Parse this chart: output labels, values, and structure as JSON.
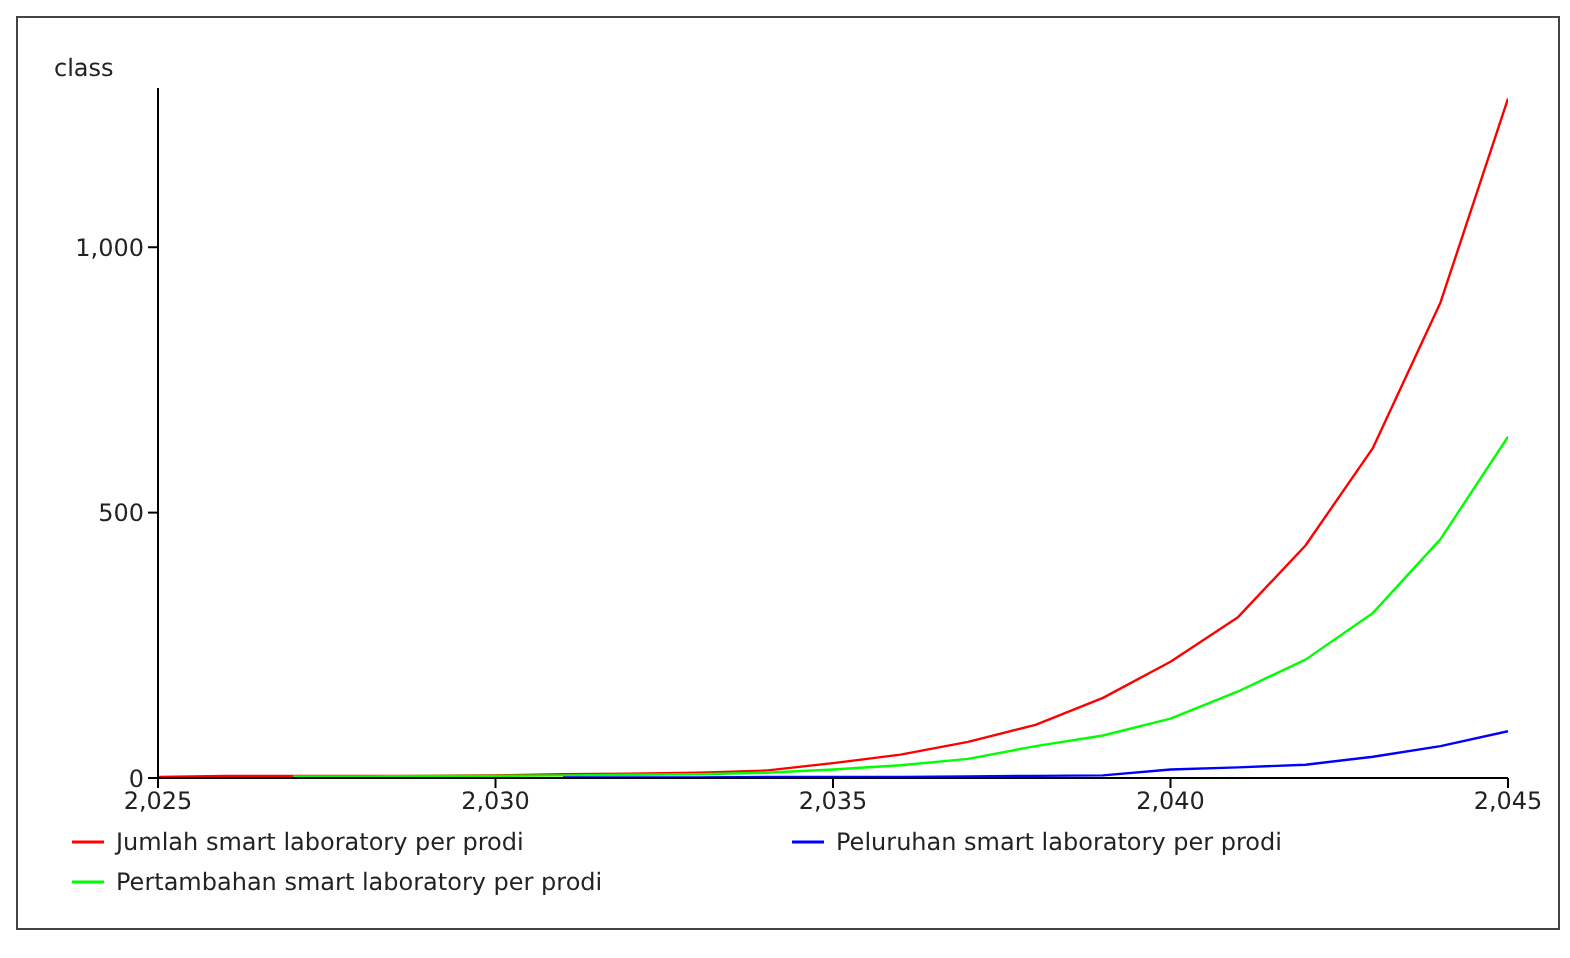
{
  "chart_data": {
    "type": "line",
    "ylabel": "class",
    "x": [
      2025,
      2026,
      2027,
      2028,
      2029,
      2030,
      2031,
      2032,
      2033,
      2034,
      2035,
      2036,
      2037,
      2038,
      2039,
      2040,
      2041,
      2042,
      2043,
      2044,
      2045
    ],
    "series": [
      {
        "name": "Jumlah smart laboratory per prodi",
        "color": "#ff0000",
        "values": [
          2,
          4,
          4,
          4,
          4,
          5,
          7,
          8,
          10,
          14,
          28,
          44,
          68,
          100,
          151,
          219,
          303,
          438,
          622,
          896,
          1280
        ]
      },
      {
        "name": "Pertambahan smart laboratory per prodi",
        "color": "#00ff00",
        "values": [
          null,
          null,
          3,
          3,
          4,
          4,
          5,
          6,
          7,
          10,
          16,
          24,
          36,
          60,
          80,
          112,
          163,
          223,
          311,
          450,
          643
        ]
      },
      {
        "name": "Peluruhan smart laboratory per prodi",
        "color": "#0000ff",
        "values": [
          null,
          null,
          null,
          null,
          null,
          null,
          1,
          1,
          1,
          2,
          2,
          2,
          3,
          4,
          5,
          16,
          20,
          25,
          40,
          60,
          88
        ]
      }
    ],
    "xlim": [
      2025,
      2045
    ],
    "xticks": [
      {
        "value": 2025,
        "label": "2,025"
      },
      {
        "value": 2030,
        "label": "2,030"
      },
      {
        "value": 2035,
        "label": "2,035"
      },
      {
        "value": 2040,
        "label": "2,040"
      },
      {
        "value": 2045,
        "label": "2,045"
      }
    ],
    "ylim": [
      0,
      1300
    ],
    "yticks": [
      0,
      500,
      {
        "value": 1000,
        "label": "1,000"
      }
    ],
    "grid": false,
    "legend": "bottom",
    "marker": "none",
    "line_style": "solid"
  }
}
